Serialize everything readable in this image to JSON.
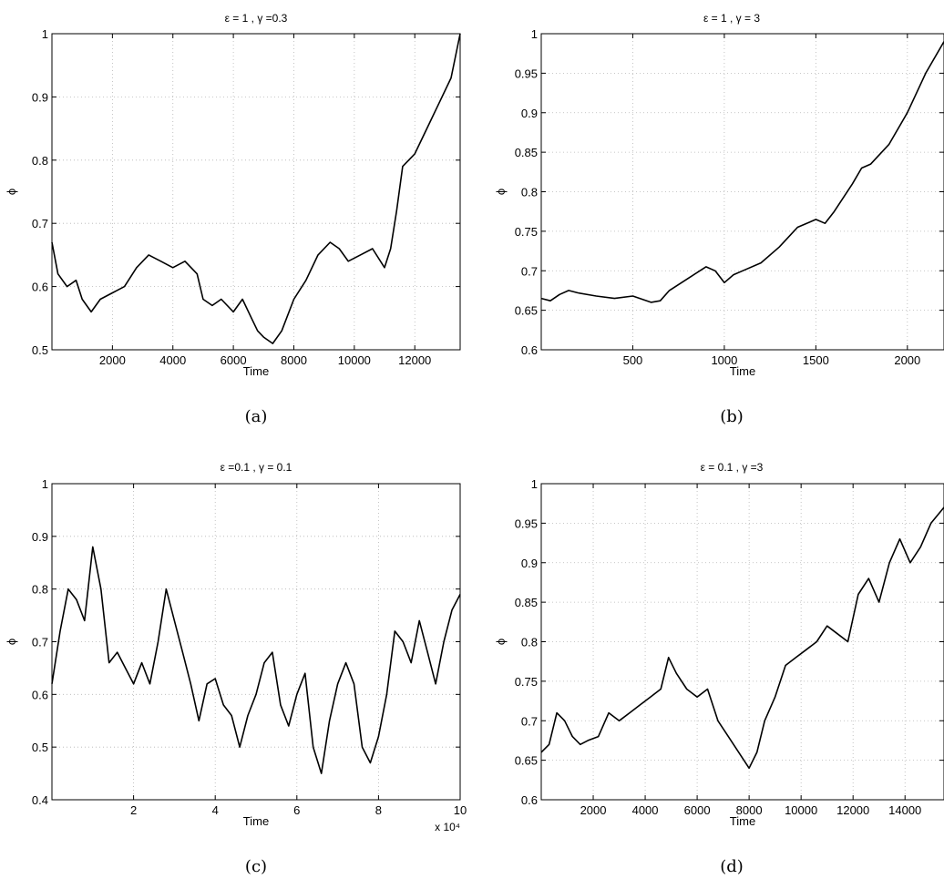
{
  "chart_data": [
    {
      "type": "line",
      "title": "ε = 1 , γ =0.3",
      "xlabel": "Time",
      "ylabel": "ϕ",
      "caption": "(a)",
      "xlim": [
        0,
        13500
      ],
      "ylim": [
        0.5,
        1.0
      ],
      "xticks": [
        2000,
        4000,
        6000,
        8000,
        10000,
        12000
      ],
      "xtick_labels": [
        "2000",
        "4000",
        "6000",
        "8000",
        "10000",
        "12000"
      ],
      "yticks": [
        0.5,
        0.6,
        0.7,
        0.8,
        0.9,
        1.0
      ],
      "ytick_labels": [
        "0.5",
        "0.6",
        "0.7",
        "0.8",
        "0.9",
        "1"
      ],
      "x_multiplier_label": "",
      "grid": true,
      "series": [
        {
          "x": [
            0,
            200,
            500,
            800,
            1000,
            1300,
            1600,
            2000,
            2400,
            2800,
            3200,
            3600,
            4000,
            4400,
            4800,
            5000,
            5300,
            5600,
            6000,
            6300,
            6600,
            6800,
            7000,
            7300,
            7600,
            8000,
            8400,
            8800,
            9200,
            9500,
            9800,
            10200,
            10600,
            11000,
            11200,
            11400,
            11600,
            12000,
            12400,
            12800,
            13200,
            13500
          ],
          "y": [
            0.67,
            0.62,
            0.6,
            0.61,
            0.58,
            0.56,
            0.58,
            0.59,
            0.6,
            0.63,
            0.65,
            0.64,
            0.63,
            0.64,
            0.62,
            0.58,
            0.57,
            0.58,
            0.56,
            0.58,
            0.55,
            0.53,
            0.52,
            0.51,
            0.53,
            0.58,
            0.61,
            0.65,
            0.67,
            0.66,
            0.64,
            0.65,
            0.66,
            0.63,
            0.66,
            0.72,
            0.79,
            0.81,
            0.85,
            0.89,
            0.93,
            1.0
          ]
        }
      ]
    },
    {
      "type": "line",
      "title": "ε = 1 , γ = 3",
      "xlabel": "Time",
      "ylabel": "ϕ",
      "caption": "(b)",
      "xlim": [
        0,
        2200
      ],
      "ylim": [
        0.6,
        1.0
      ],
      "xticks": [
        500,
        1000,
        1500,
        2000
      ],
      "xtick_labels": [
        "500",
        "1000",
        "1500",
        "2000"
      ],
      "yticks": [
        0.6,
        0.65,
        0.7,
        0.75,
        0.8,
        0.85,
        0.9,
        0.95,
        1.0
      ],
      "ytick_labels": [
        "0.6",
        "0.65",
        "0.7",
        "0.75",
        "0.8",
        "0.85",
        "0.9",
        "0.95",
        "1"
      ],
      "x_multiplier_label": "",
      "grid": true,
      "series": [
        {
          "x": [
            0,
            50,
            100,
            150,
            200,
            300,
            400,
            500,
            600,
            650,
            700,
            800,
            900,
            950,
            1000,
            1050,
            1100,
            1200,
            1300,
            1400,
            1500,
            1550,
            1600,
            1700,
            1750,
            1800,
            1900,
            2000,
            2100,
            2200
          ],
          "y": [
            0.665,
            0.662,
            0.67,
            0.675,
            0.672,
            0.668,
            0.665,
            0.668,
            0.66,
            0.662,
            0.675,
            0.69,
            0.705,
            0.7,
            0.685,
            0.695,
            0.7,
            0.71,
            0.73,
            0.755,
            0.765,
            0.76,
            0.775,
            0.81,
            0.83,
            0.835,
            0.86,
            0.9,
            0.95,
            0.99
          ]
        }
      ]
    },
    {
      "type": "line",
      "title": "ε =0.1 , γ = 0.1",
      "xlabel": "Time",
      "ylabel": "ϕ",
      "caption": "(c)",
      "xlim": [
        0,
        100000
      ],
      "ylim": [
        0.4,
        1.0
      ],
      "xticks": [
        20000,
        40000,
        60000,
        80000,
        100000
      ],
      "xtick_labels": [
        "2",
        "4",
        "6",
        "8",
        "10"
      ],
      "yticks": [
        0.4,
        0.5,
        0.6,
        0.7,
        0.8,
        0.9,
        1.0
      ],
      "ytick_labels": [
        "0.4",
        "0.5",
        "0.6",
        "0.7",
        "0.8",
        "0.9",
        "1"
      ],
      "x_multiplier_label": "x 10⁴",
      "grid": true,
      "series": [
        {
          "x": [
            0,
            2000,
            4000,
            6000,
            8000,
            10000,
            12000,
            14000,
            16000,
            18000,
            20000,
            22000,
            24000,
            26000,
            28000,
            30000,
            32000,
            34000,
            36000,
            38000,
            40000,
            42000,
            44000,
            46000,
            48000,
            50000,
            52000,
            54000,
            56000,
            58000,
            60000,
            62000,
            64000,
            66000,
            68000,
            70000,
            72000,
            74000,
            76000,
            78000,
            80000,
            82000,
            84000,
            86000,
            88000,
            90000,
            92000,
            94000,
            96000,
            98000,
            100000
          ],
          "y": [
            0.62,
            0.72,
            0.8,
            0.78,
            0.74,
            0.88,
            0.8,
            0.66,
            0.68,
            0.65,
            0.62,
            0.66,
            0.62,
            0.7,
            0.8,
            0.74,
            0.68,
            0.62,
            0.55,
            0.62,
            0.63,
            0.58,
            0.56,
            0.5,
            0.56,
            0.6,
            0.66,
            0.68,
            0.58,
            0.54,
            0.6,
            0.64,
            0.5,
            0.45,
            0.55,
            0.62,
            0.66,
            0.62,
            0.5,
            0.47,
            0.52,
            0.6,
            0.72,
            0.7,
            0.66,
            0.74,
            0.68,
            0.62,
            0.7,
            0.76,
            0.79
          ]
        }
      ]
    },
    {
      "type": "line",
      "title": "ε = 0.1 , γ =3",
      "xlabel": "Time",
      "ylabel": "ϕ",
      "caption": "(d)",
      "xlim": [
        0,
        15500
      ],
      "ylim": [
        0.6,
        1.0
      ],
      "xticks": [
        2000,
        4000,
        6000,
        8000,
        10000,
        12000,
        14000
      ],
      "xtick_labels": [
        "2000",
        "4000",
        "6000",
        "8000",
        "10000",
        "12000",
        "14000"
      ],
      "yticks": [
        0.6,
        0.65,
        0.7,
        0.75,
        0.8,
        0.85,
        0.9,
        0.95,
        1.0
      ],
      "ytick_labels": [
        "0.6",
        "0.65",
        "0.7",
        "0.75",
        "0.8",
        "0.85",
        "0.9",
        "0.95",
        "1"
      ],
      "x_multiplier_label": "",
      "grid": true,
      "series": [
        {
          "x": [
            0,
            300,
            600,
            900,
            1200,
            1500,
            1800,
            2200,
            2600,
            3000,
            3400,
            3800,
            4200,
            4600,
            4900,
            5200,
            5600,
            6000,
            6400,
            6800,
            7200,
            7600,
            8000,
            8300,
            8600,
            9000,
            9400,
            9800,
            10200,
            10600,
            11000,
            11400,
            11800,
            12200,
            12600,
            13000,
            13400,
            13800,
            14200,
            14600,
            15000,
            15500
          ],
          "y": [
            0.66,
            0.67,
            0.71,
            0.7,
            0.68,
            0.67,
            0.675,
            0.68,
            0.71,
            0.7,
            0.71,
            0.72,
            0.73,
            0.74,
            0.78,
            0.76,
            0.74,
            0.73,
            0.74,
            0.7,
            0.68,
            0.66,
            0.64,
            0.66,
            0.7,
            0.73,
            0.77,
            0.78,
            0.79,
            0.8,
            0.82,
            0.81,
            0.8,
            0.86,
            0.88,
            0.85,
            0.9,
            0.93,
            0.9,
            0.92,
            0.95,
            0.97
          ]
        }
      ]
    }
  ]
}
